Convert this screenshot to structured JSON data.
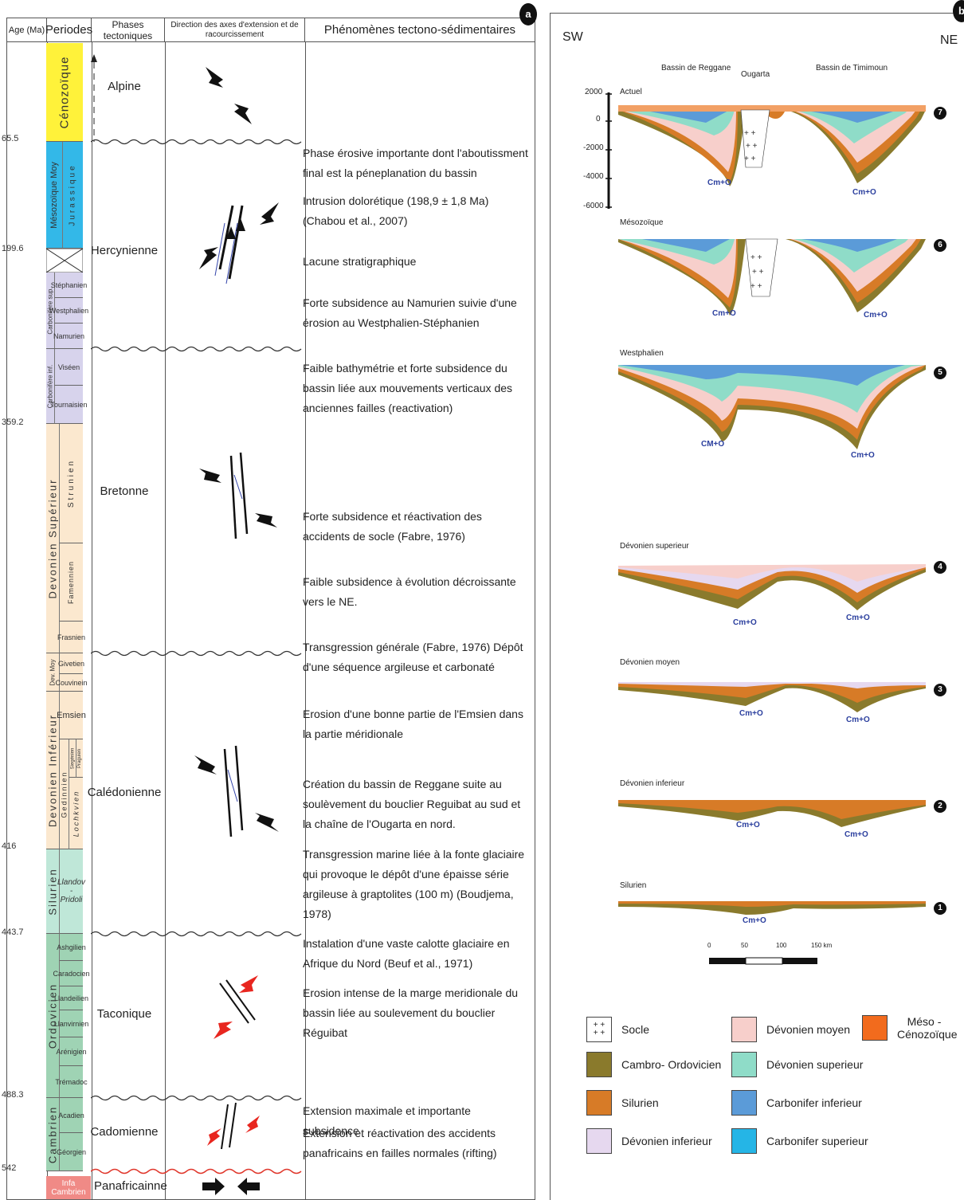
{
  "panel_a": {
    "tag": "a",
    "headers": {
      "age": "Age (Ma)",
      "periods": "Periodes",
      "phases": "Phases tectoniques",
      "direction": "Direction des axes d'extension et de racourcissement",
      "phenomena": "Phénomènes tectono-sédimentaires"
    },
    "ages": [
      "65.5",
      "199.6",
      "359.2",
      "416",
      "443.7",
      "488.3",
      "542"
    ],
    "periods": [
      {
        "label": "Cénozoïque",
        "color": "#fff23a"
      },
      {
        "label": "Mésozoïque Moy",
        "color": "#33b8e8"
      },
      {
        "label": "Carbonifère sup.",
        "color": "#d7d3ec"
      },
      {
        "label": "Carbonifère inf.",
        "color": "#d7d3ec"
      },
      {
        "label": "Devonien Supérieur",
        "color": "#fbe8cf"
      },
      {
        "label": "Dev. Moy",
        "color": "#fbe8cf"
      },
      {
        "label": "Devonien Inférieur",
        "color": "#fbe8cf"
      },
      {
        "label": "Silurien",
        "color": "#bfe7d8"
      },
      {
        "label": "Ordovicien",
        "color": "#9fd3b4"
      },
      {
        "label": "Cambrien",
        "color": "#9fd3b4"
      },
      {
        "label": "Infa Cambrien",
        "color": "#f08a86"
      }
    ],
    "stages": {
      "jurassique": "Jurassique",
      "stephanien": "Stéphanien",
      "westphalien": "Westphalien",
      "namurien": "Namurien",
      "viseen": "Viséen",
      "tournaisien": "Tournaisien",
      "strunien": "Strunien",
      "famennien": "Famennien",
      "frasnien": "Frasnien",
      "givetien": "Givetien",
      "couvinein": "Couvinein",
      "emsien": "Emsien",
      "gedinnien": "Gedinnien",
      "siegenien": "Siegénien",
      "praguien": "Praguien",
      "lochkvien": "Lochkvien",
      "llandov": "Llandov",
      "dot": "-",
      "pridoli": "Pridoli",
      "ashgilien": "Ashgilien",
      "caradocien": "Caradocien",
      "llandeilien": "Llandeilien",
      "llanvirnien": "Llanvirnien",
      "arenigien": "Arénigien",
      "tremadoc": "Trémadoc",
      "acadien": "Acadien",
      "georgien": "Géorgien"
    },
    "phases": [
      "Alpine",
      "Hercynienne",
      "Bretonne",
      "Calédonienne",
      "Taconique",
      "Cadomienne",
      "Panafricainne"
    ],
    "phenomena": [
      "Phase érosive importante dont l'aboutissment final est la péneplanation du bassin",
      "Intrusion dolorétique (198,9 ± 1,8 Ma) (Chabou et al., 2007)",
      "Lacune stratigraphique",
      "Forte subsidence au Namurien suivie d'une érosion au Westphalien-Stéphanien",
      "Faible bathymétrie et forte subsidence du bassin liée aux mouvements verticaux des anciennes failles (reactivation)",
      "Forte subsidence et réactivation des accidents de socle (Fabre, 1976)",
      "Faible subsidence à évolution décroissante vers le NE.",
      "Transgression générale (Fabre, 1976) Dépôt d'une séquence argileuse et carbonaté",
      "Erosion d'une bonne partie de l'Emsien dans la partie méridionale",
      "Création du bassin de Reggane suite au soulèvement du bouclier Reguibat au sud et la chaîne de l'Ougarta en nord.",
      "Transgression marine liée à la fonte glaciaire qui provoque le dépôt d'une épaisse série argileuse à graptolites (100 m) (Boudjema, 1978)",
      "Instalation d'une vaste calotte glaciaire en Afrique du Nord (Beuf et al., 1971)",
      "Erosion intense de la marge meridionale du bassin liée au soulevement du bouclier Réguibat",
      "Extension maximale et importante subsidence",
      "Extension et réactivation des accidents panafricains en failles normales (rifting)"
    ]
  },
  "panel_b": {
    "tag": "b",
    "sw": "SW",
    "ne": "NE",
    "basins": {
      "reggane": "Bassin de Reggane",
      "ougarta": "Ougarta",
      "timimoun": "Bassin de Timimoun"
    },
    "depth_ticks": [
      "2000",
      "0",
      "-2000",
      "-4000",
      "-6000"
    ],
    "sections": [
      {
        "label": "Actuel",
        "num": "7"
      },
      {
        "label": "Mésozoïque",
        "num": "6"
      },
      {
        "label": "Westphalien",
        "num": "5"
      },
      {
        "label": "Dévonien superieur",
        "num": "4"
      },
      {
        "label": "Dévonien moyen",
        "num": "3"
      },
      {
        "label": "Dévonien inferieur",
        "num": "2"
      },
      {
        "label": "Silurien",
        "num": "1"
      }
    ],
    "cmo": "Cm+O",
    "cmo_caps": "CM+O",
    "scale": [
      "0",
      "50",
      "100",
      "150 km"
    ],
    "legend": [
      {
        "label": "Socle",
        "color": "#ffffff"
      },
      {
        "label": "Cambro- Ordovicien",
        "color": "#8a7a2c"
      },
      {
        "label": "Silurien",
        "color": "#d77b27"
      },
      {
        "label": "Dévonien inferieur",
        "color": "#e6d8ef"
      },
      {
        "label": "Dévonien moyen",
        "color": "#f7cfcb"
      },
      {
        "label": "Dévonien superieur",
        "color": "#8fdcc8"
      },
      {
        "label": "Carbonifer inferieur",
        "color": "#5b9bd8"
      },
      {
        "label": "Carbonifer superieur",
        "color": "#25b5e6"
      },
      {
        "label": "Méso - Cénozoïque",
        "color": "#f26b1d"
      }
    ]
  }
}
